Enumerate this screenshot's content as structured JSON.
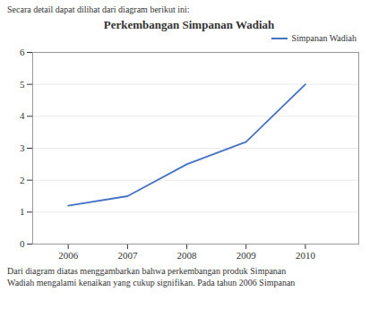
{
  "chart_data": {
    "type": "line",
    "title": "Perkembangan Simpanan Wadiah",
    "annotations": [
      "Secara detail dapat dilihat dari diagram berikut ini:",
      "Dari diagram diatas menggambarkan bahwa perkembangan produk Simpanan",
      "Wadiah mengalami kenaikan yang cukup signifikan. Pada tahun 2006 Simpanan"
    ],
    "x": [
      2006,
      2007,
      2008,
      2009,
      2010
    ],
    "series": [
      {
        "name": "Simpanan Wadiah",
        "color": "#4472C4",
        "values": [
          1.2,
          1.5,
          2.5,
          3.2,
          5.0
        ]
      }
    ],
    "xlim": [
      2005.4,
      2010.9
    ],
    "xticks": [
      2006,
      2007,
      2008,
      2009,
      2010
    ],
    "ylim": [
      0,
      6
    ],
    "yticks": [
      0,
      1,
      2,
      3,
      4,
      5,
      6
    ],
    "grid": true,
    "legend": "right"
  }
}
